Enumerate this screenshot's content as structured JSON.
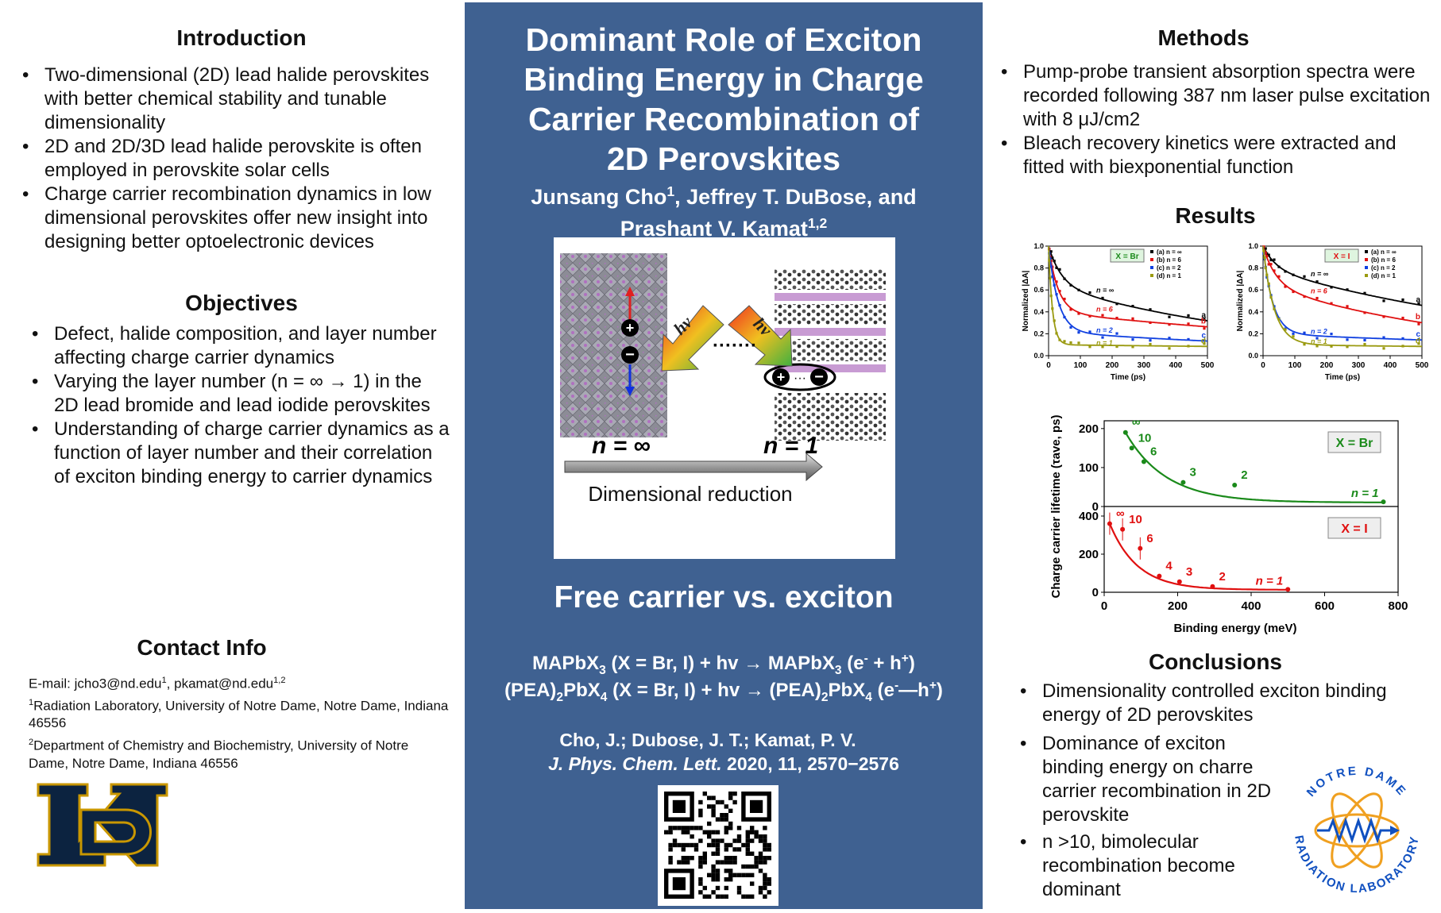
{
  "intro": {
    "heading": "Introduction",
    "items": [
      "Two-dimensional (2D) lead halide perovskites with better chemical stability and tunable dimensionality",
      "2D and 2D/3D lead halide perovskite is often employed in perovskite solar cells",
      "Charge carrier recombination dynamics in low dimensional perovskites offer new insight into designing better optoelectronic devices"
    ]
  },
  "objectives": {
    "heading": "Objectives",
    "items": [
      "Defect, halide composition, and layer number affecting charge carrier dynamics",
      "Varying the layer number  (n = ∞ → 1) in the 2D lead bromide and lead iodide perovskites",
      "Understanding of charge carrier dynamics as a function of layer number and their correlation of exciton binding energy to carrier dynamics"
    ]
  },
  "contact": {
    "heading": "Contact Info",
    "email_a": "E-mail: jcho3@nd.edu",
    "email_a_sup": "1",
    "email_b": ", pkamat@nd.edu",
    "email_b_sup": "1,2",
    "aff1_sup": "1",
    "aff1": "Radiation Laboratory, University of Notre Dame, Notre Dame, Indiana 46556",
    "aff2_sup": "2",
    "aff2": "Department of Chemistry and Biochemistry, University of Notre Dame, Notre Dame, Indiana 46556"
  },
  "center": {
    "title_lines": [
      "Dominant Role of Exciton",
      "Binding Energy in Charge",
      "Carrier Recombination of",
      "2D Perovskites"
    ],
    "author1": "Junsang Cho",
    "author1_sup": "1",
    "author2": ", Jeffrey T. DuBose, and",
    "author3": "Prashant V. Kamat",
    "author3_sup": "1,2",
    "fig_label_inf": "n = ∞",
    "fig_label_one": "n = 1",
    "fig_hv": "hν",
    "fig_dimensional": "Dimensional  reduction",
    "subhead": "Free carrier vs. exciton",
    "eq1_a": "MAPbX",
    "eq1_sub": "3",
    "eq1_b": " (X = Br, I) + hv → MAPbX",
    "eq1_sub2": "3",
    "eq1_c": " (e",
    "eq1_sup1": "-",
    "eq1_d": " + h",
    "eq1_sup2": "+",
    "eq1_e": ")",
    "eq2_a": "(PEA)",
    "eq2_sub1": "2",
    "eq2_b": "PbX",
    "eq2_sub2": "4",
    "eq2_c": " (X = Br, I) + hv → (PEA)",
    "eq2_sub3": "2",
    "eq2_d": "PbX",
    "eq2_sub4": "4",
    "eq2_e": " (e",
    "eq2_sup1": "-",
    "eq2_f": "—h",
    "eq2_sup2": "+",
    "eq2_g": ")",
    "cite_line1": "Cho, J.; Dubose, J. T.; Kamat, P. V.",
    "cite_journal": "J. Phys. Chem. Lett.",
    "cite_rest": " 2020, 11, 2570−2576"
  },
  "methods": {
    "heading": "Methods",
    "items": [
      "Pump-probe transient absorption spectra were recorded following 387 nm laser pulse excitation with 8 μJ/cm2",
      "Bleach recovery kinetics were extracted and fitted with biexponential function"
    ]
  },
  "results": {
    "heading": "Results"
  },
  "conclusions": {
    "heading": "Conclusions",
    "items": [
      "Dimensionality controlled exciton binding energy of 2D perovskites",
      "Dominance of exciton binding energy on charre carrier recombination in 2D perovskite",
      "n >10, bimolecular recombination become dominant"
    ]
  },
  "logo_text": "NOTRE DAME RADIATION LABORATORY",
  "colors": {
    "panel_blue": "#3f6191",
    "nd_navy": "#0c2340",
    "nd_gold": "#c99700",
    "br_green": "#1a8a1a",
    "i_red": "#e01010"
  },
  "chart_data": [
    {
      "type": "scatter",
      "title": "X = Br",
      "xlabel": "Time (ps)",
      "ylabel": "Normalized |ΔA|",
      "xlim": [
        0,
        500
      ],
      "ylim": [
        0,
        1.0
      ],
      "xticks": [
        "0",
        "100",
        "200",
        "300",
        "400",
        "500"
      ],
      "yticks": [
        "0.0",
        "0.2",
        "0.4",
        "0.6",
        "0.8",
        "1.0"
      ],
      "legend": [
        "(a) n = ∞",
        "(b) n = 6",
        "(c) n = 2",
        "(d) n = 1"
      ],
      "series": [
        {
          "name": "(a) n = ∞",
          "label": "n = ∞",
          "letter": "a",
          "color": "#000000",
          "a1": 0.35,
          "t1": 40,
          "a2": 0.65,
          "t2": 700
        },
        {
          "name": "(b) n = 6",
          "label": "n = 6",
          "letter": "b",
          "color": "#e01010",
          "a1": 0.6,
          "t1": 30,
          "a2": 0.4,
          "t2": 1200
        },
        {
          "name": "(c) n = 2",
          "label": "n = 2",
          "letter": "c",
          "color": "#1040e0",
          "a1": 0.78,
          "t1": 30,
          "a2": 0.22,
          "t2": 1000
        },
        {
          "name": "(d) n = 1",
          "label": "n = 1",
          "letter": "d",
          "color": "#9a9a10",
          "a1": 0.9,
          "t1": 12,
          "a2": 0.1,
          "t2": 3000
        }
      ]
    },
    {
      "type": "scatter",
      "title": "X = I",
      "xlabel": "Time (ps)",
      "ylabel": "Normalized |ΔA|",
      "xlim": [
        0,
        500
      ],
      "ylim": [
        0,
        1.0
      ],
      "xticks": [
        "0",
        "100",
        "200",
        "300",
        "400",
        "500"
      ],
      "yticks": [
        "0.0",
        "0.2",
        "0.4",
        "0.6",
        "0.8",
        "1.0"
      ],
      "legend": [
        "(a) n = ∞",
        "(b) n = 6",
        "(c) n = 2",
        "(d) n = 1"
      ],
      "series": [
        {
          "name": "(a) n = ∞",
          "label": "n = ∞",
          "letter": "a",
          "color": "#000000",
          "a1": 0.2,
          "t1": 40,
          "a2": 0.8,
          "t2": 900
        },
        {
          "name": "(b) n = 6",
          "label": "n = 6",
          "letter": "b",
          "color": "#e01010",
          "a1": 0.35,
          "t1": 40,
          "a2": 0.65,
          "t2": 650
        },
        {
          "name": "(c) n = 2",
          "label": "n = 2",
          "letter": "c",
          "color": "#1040e0",
          "a1": 0.8,
          "t1": 30,
          "a2": 0.2,
          "t2": 1500
        },
        {
          "name": "(d) n = 1",
          "label": "n = 1",
          "letter": "d",
          "color": "#9a9a10",
          "a1": 0.9,
          "t1": 35,
          "a2": 0.1,
          "t2": 3000
        }
      ]
    },
    {
      "type": "scatter",
      "xlabel": "Binding energy (meV)",
      "ylabel": "Charge carrier lifetime (τave, ps)",
      "xlim": [
        0,
        800
      ],
      "xticks": [
        "0",
        "200",
        "400",
        "600",
        "800"
      ],
      "panels": [
        {
          "title": "X = Br",
          "color": "#1a8a1a",
          "ylim": [
            0,
            220
          ],
          "yticks": [
            "0",
            "100",
            "200"
          ],
          "points": [
            {
              "label": "∞",
              "x": 58,
              "y": 190
            },
            {
              "label": "10",
              "x": 75,
              "y": 150
            },
            {
              "label": "6",
              "x": 108,
              "y": 115
            },
            {
              "label": "3",
              "x": 215,
              "y": 62
            },
            {
              "label": "2",
              "x": 355,
              "y": 55
            },
            {
              "label": "n = 1",
              "x": 760,
              "y": 12
            }
          ]
        },
        {
          "title": "X = I",
          "color": "#e01010",
          "ylim": [
            0,
            450
          ],
          "yticks": [
            "0",
            "200",
            "400"
          ],
          "points": [
            {
              "label": "∞",
              "x": 15,
              "y": 360
            },
            {
              "label": "10",
              "x": 50,
              "y": 330
            },
            {
              "label": "6",
              "x": 98,
              "y": 230
            },
            {
              "label": "4",
              "x": 150,
              "y": 85
            },
            {
              "label": "3",
              "x": 205,
              "y": 55
            },
            {
              "label": "2",
              "x": 295,
              "y": 30
            },
            {
              "label": "n = 1",
              "x": 500,
              "y": 15
            }
          ]
        }
      ]
    }
  ]
}
